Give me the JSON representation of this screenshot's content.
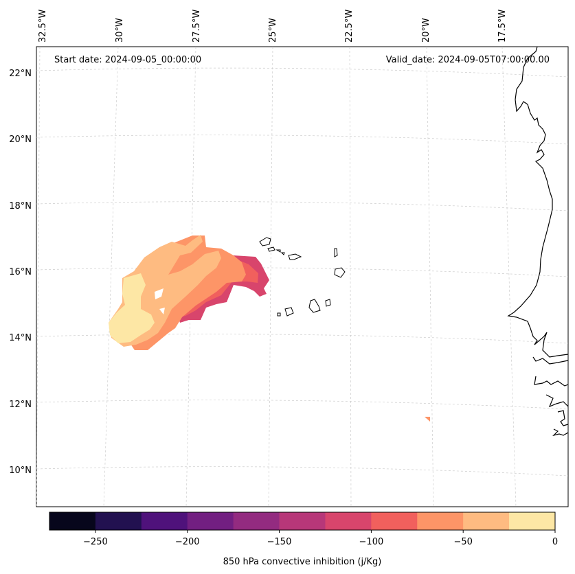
{
  "header": {
    "start_date": "Start date: 2024-09-05_00:00:00",
    "valid_date": "Valid_date: 2024-09-05T07:00:00.00"
  },
  "axes": {
    "lon_labels": [
      "32.5°W",
      "30°W",
      "27.5°W",
      "25°W",
      "22.5°W",
      "20°W",
      "17.5°W"
    ],
    "lat_labels": [
      "22°N",
      "20°N",
      "18°N",
      "16°N",
      "14°N",
      "12°N",
      "10°N"
    ]
  },
  "colorbar": {
    "title": "850 hPa convective inhibition (j/Kg)",
    "ticks": [
      "−250",
      "−200",
      "−150",
      "−100",
      "−50",
      "0"
    ],
    "colors": [
      "#07061c",
      "#221150",
      "#4f127b",
      "#721f81",
      "#932b80",
      "#b73779",
      "#d8456c",
      "#f1605d",
      "#fd9567",
      "#febb81",
      "#fde7a5"
    ]
  }
}
